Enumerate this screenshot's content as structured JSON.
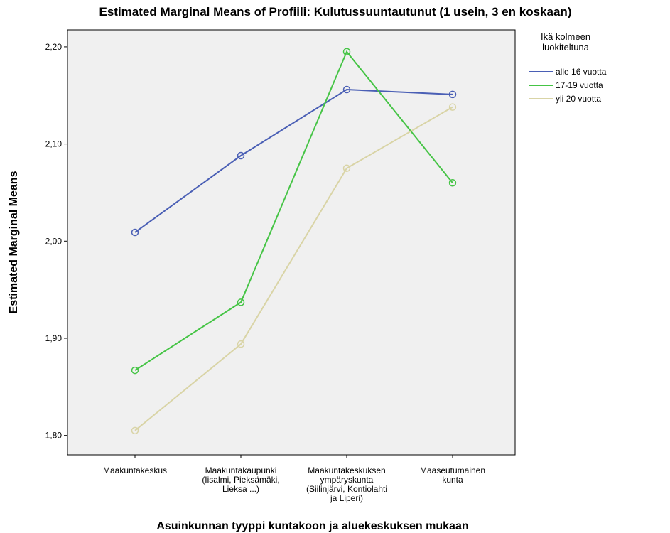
{
  "chart_data": {
    "type": "line",
    "title": "Estimated Marginal Means of Profiili: Kulutussuuntautunut (1 usein, 3 en koskaan)",
    "xlabel": "Asuinkunnan tyyppi kuntakoon ja aluekeskuksen mukaan",
    "ylabel": "Estimated Marginal Means",
    "legend_title": "Ikä kolmeen\nluokiteltuna",
    "categories": [
      "Maakuntakeskus",
      "Maakuntakaupunki\n(Iisalmi, Pieksämäki,\nLieksa ...)",
      "Maakuntakeskuksen\nympäryskunta\n(Siilinjärvi, Kontiolahti\nja Liperi)",
      "Maaseutumainen\nkunta"
    ],
    "series": [
      {
        "name": "alle 16 vuotta",
        "color": "#4a5fb5",
        "values": [
          2.009,
          2.088,
          2.156,
          2.151
        ]
      },
      {
        "name": "17-19 vuotta",
        "color": "#45c445",
        "values": [
          1.867,
          1.937,
          2.195,
          2.06
        ]
      },
      {
        "name": "yli 20 vuotta",
        "color": "#d9d4a6",
        "values": [
          1.805,
          1.894,
          2.075,
          2.138
        ]
      }
    ],
    "ylim": [
      1.78,
      2.2175
    ],
    "yticks": [
      {
        "value": 1.8,
        "label": "1,80"
      },
      {
        "value": 1.9,
        "label": "1,90"
      },
      {
        "value": 2.0,
        "label": "2,00"
      },
      {
        "value": 2.1,
        "label": "2,10"
      },
      {
        "value": 2.2,
        "label": "2,20"
      }
    ],
    "legend": "right"
  }
}
